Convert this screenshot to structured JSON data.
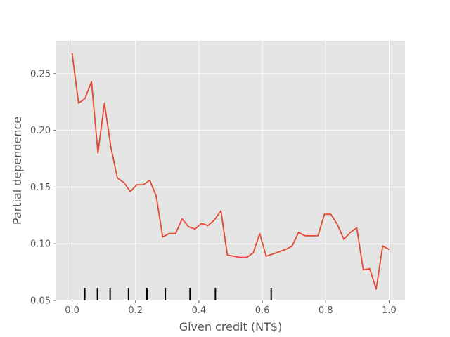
{
  "chart_data": {
    "type": "line",
    "title": "",
    "xlabel": "Given credit (NT$)",
    "ylabel": "Partial dependence",
    "xlim": [
      -0.05,
      1.05
    ],
    "ylim": [
      0.05,
      0.279
    ],
    "xticks": [
      0.0,
      0.2,
      0.4,
      0.6,
      0.8,
      1.0
    ],
    "xtick_labels": [
      "0.0",
      "0.2",
      "0.4",
      "0.6",
      "0.8",
      "1.0"
    ],
    "yticks": [
      0.05,
      0.1,
      0.15,
      0.2,
      0.25
    ],
    "ytick_labels": [
      "0.05",
      "0.10",
      "0.15",
      "0.20",
      "0.25"
    ],
    "grid": true,
    "background": "#e5e5e5",
    "line_color": "#e24a33",
    "series": [
      {
        "x": [
          0.0,
          0.0204,
          0.0408,
          0.0612,
          0.0816,
          0.102,
          0.1224,
          0.1429,
          0.1633,
          0.1837,
          0.2041,
          0.2245,
          0.2449,
          0.2653,
          0.2857,
          0.3061,
          0.3265,
          0.3469,
          0.3673,
          0.3878,
          0.4082,
          0.4286,
          0.449,
          0.4694,
          0.4898,
          0.5102,
          0.5306,
          0.551,
          0.5714,
          0.5918,
          0.6122,
          0.6327,
          0.6531,
          0.6735,
          0.6939,
          0.7143,
          0.7347,
          0.7551,
          0.7755,
          0.7959,
          0.8163,
          0.8367,
          0.8571,
          0.8776,
          0.898,
          0.9184,
          0.9388,
          0.9592,
          0.9796,
          1.0
        ],
        "values": [
          0.268,
          0.224,
          0.228,
          0.243,
          0.18,
          0.224,
          0.185,
          0.158,
          0.154,
          0.146,
          0.152,
          0.152,
          0.156,
          0.142,
          0.106,
          0.109,
          0.109,
          0.122,
          0.115,
          0.113,
          0.118,
          0.116,
          0.121,
          0.129,
          0.09,
          0.089,
          0.088,
          0.088,
          0.092,
          0.109,
          0.089,
          0.091,
          0.093,
          0.095,
          0.098,
          0.11,
          0.107,
          0.107,
          0.107,
          0.126,
          0.126,
          0.117,
          0.104,
          0.11,
          0.114,
          0.077,
          0.078,
          0.06,
          0.098,
          0.095
        ]
      }
    ],
    "rug": [
      0.04,
      0.08,
      0.12,
      0.178,
      0.236,
      0.294,
      0.372,
      0.452,
      0.628
    ]
  }
}
